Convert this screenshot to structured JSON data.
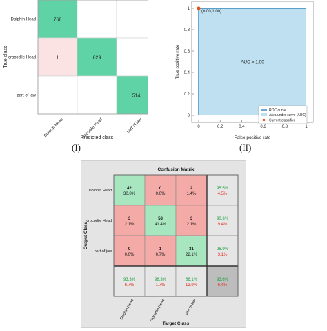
{
  "captions": {
    "left": "(I)",
    "right": "(II)"
  },
  "chart_data": [
    {
      "type": "heatmap",
      "title": "",
      "xlabel": "Predicted class",
      "ylabel": "True class",
      "row_labels": [
        "Dolphin Head",
        "crocodile Head",
        "part of jaw"
      ],
      "col_labels": [
        "Dolphin Head",
        "crocodile Head",
        "part of jaw"
      ],
      "values": [
        [
          768,
          null,
          null
        ],
        [
          1,
          629,
          null
        ],
        [
          null,
          null,
          514
        ]
      ],
      "colors": {
        "diag": "#5fd3a6",
        "offdiag": "#fbe3e3",
        "empty": "#ffffff"
      }
    },
    {
      "type": "area",
      "title": "",
      "xlabel": "False positive rate",
      "ylabel": "True positive rate",
      "xlim": [
        0,
        1
      ],
      "ylim": [
        0,
        1
      ],
      "x_ticks": [
        "0",
        "0.2",
        "0.4",
        "0.6",
        "0.8",
        "1"
      ],
      "y_ticks": [
        "0",
        "0.2",
        "0.4",
        "0.6",
        "0.8",
        "1"
      ],
      "roc_curve": {
        "x": [
          0,
          0,
          1
        ],
        "y": [
          0,
          1,
          1
        ]
      },
      "current_classifier": {
        "x": 0,
        "y": 1,
        "label": "(0.00,1.00)"
      },
      "annotation": "AUC = 1.00",
      "legend": [
        "ROC curve",
        "Area under curve (AUC)",
        "Current classifier"
      ],
      "legend_position": "bottom-right",
      "colors": {
        "curve": "#1f77b4",
        "area": "#bfe0f0",
        "point": "#e8501a"
      }
    },
    {
      "type": "heatmap",
      "title": "Confusion Matrix",
      "xlabel": "Target Class",
      "ylabel": "Output Class",
      "row_labels": [
        "Dolphin Head",
        "crocodile Head",
        "part of jaw"
      ],
      "col_labels": [
        "Dolphin Head",
        "crocodile Head",
        "part of jaw"
      ],
      "cells": [
        [
          {
            "count": "42",
            "pct": "30.0%"
          },
          {
            "count": "0",
            "pct": "0.0%"
          },
          {
            "count": "2",
            "pct": "1.4%"
          }
        ],
        [
          {
            "count": "3",
            "pct": "2.1%"
          },
          {
            "count": "58",
            "pct": "41.4%"
          },
          {
            "count": "3",
            "pct": "2.1%"
          }
        ],
        [
          {
            "count": "0",
            "pct": "0.0%"
          },
          {
            "count": "1",
            "pct": "0.7%"
          },
          {
            "count": "31",
            "pct": "22.1%"
          }
        ]
      ],
      "row_summary": [
        {
          "good": "95.5%",
          "bad": "4.5%"
        },
        {
          "good": "90.6%",
          "bad": "9.4%"
        },
        {
          "good": "96.9%",
          "bad": "3.1%"
        }
      ],
      "col_summary": [
        {
          "good": "93.3%",
          "bad": "6.7%"
        },
        {
          "good": "98.3%",
          "bad": "1.7%"
        },
        {
          "good": "86.1%",
          "bad": "13.9%"
        }
      ],
      "overall": {
        "good": "93.6%",
        "bad": "6.4%"
      },
      "colors": {
        "diag": "#a8e6c0",
        "offdiag": "#f4aaa6",
        "summary": "#e6e6e6",
        "overall": "#bdbdbd",
        "good": "#1a9e3c",
        "bad": "#e0301e",
        "frame": "#e4e4e4"
      }
    }
  ]
}
